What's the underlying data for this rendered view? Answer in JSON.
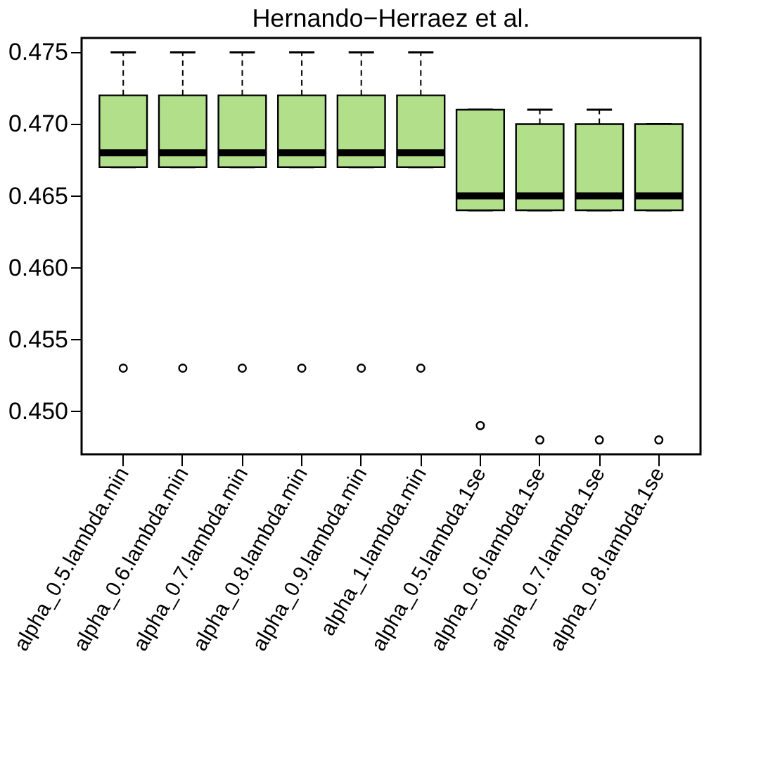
{
  "chart_data": {
    "type": "box",
    "title": "Hernando−Herraez et al.",
    "categories": [
      "alpha_0.5.lambda.min",
      "alpha_0.6.lambda.min",
      "alpha_0.7.lambda.min",
      "alpha_0.8.lambda.min",
      "alpha_0.9.lambda.min",
      "alpha_1.lambda.min",
      "alpha_0.5.lambda.1se",
      "alpha_0.6.lambda.1se",
      "alpha_0.7.lambda.1se",
      "alpha_0.8.lambda.1se"
    ],
    "color": "#b2df8a",
    "boxes": [
      {
        "low": 0.467,
        "q1": 0.467,
        "median": 0.468,
        "q3": 0.472,
        "high": 0.475,
        "outliers": [
          0.453
        ]
      },
      {
        "low": 0.467,
        "q1": 0.467,
        "median": 0.468,
        "q3": 0.472,
        "high": 0.475,
        "outliers": [
          0.453
        ]
      },
      {
        "low": 0.467,
        "q1": 0.467,
        "median": 0.468,
        "q3": 0.472,
        "high": 0.475,
        "outliers": [
          0.453
        ]
      },
      {
        "low": 0.467,
        "q1": 0.467,
        "median": 0.468,
        "q3": 0.472,
        "high": 0.475,
        "outliers": [
          0.453
        ]
      },
      {
        "low": 0.467,
        "q1": 0.467,
        "median": 0.468,
        "q3": 0.472,
        "high": 0.475,
        "outliers": [
          0.453
        ]
      },
      {
        "low": 0.467,
        "q1": 0.467,
        "median": 0.468,
        "q3": 0.472,
        "high": 0.475,
        "outliers": [
          0.453
        ]
      },
      {
        "low": 0.464,
        "q1": 0.464,
        "median": 0.465,
        "q3": 0.471,
        "high": 0.471,
        "outliers": [
          0.449
        ]
      },
      {
        "low": 0.464,
        "q1": 0.464,
        "median": 0.465,
        "q3": 0.47,
        "high": 0.471,
        "outliers": [
          0.448
        ]
      },
      {
        "low": 0.464,
        "q1": 0.464,
        "median": 0.465,
        "q3": 0.47,
        "high": 0.471,
        "outliers": [
          0.448
        ]
      },
      {
        "low": 0.464,
        "q1": 0.464,
        "median": 0.465,
        "q3": 0.47,
        "high": 0.47,
        "outliers": [
          0.448
        ]
      }
    ],
    "ylim": [
      0.447,
      0.476
    ],
    "yticks": [
      {
        "value": 0.45,
        "label": "0.450"
      },
      0.455,
      {
        "value": 0.46,
        "label": "0.460"
      },
      0.465,
      {
        "value": 0.47,
        "label": "0.470"
      },
      0.475
    ],
    "grid": false,
    "legend": false
  }
}
